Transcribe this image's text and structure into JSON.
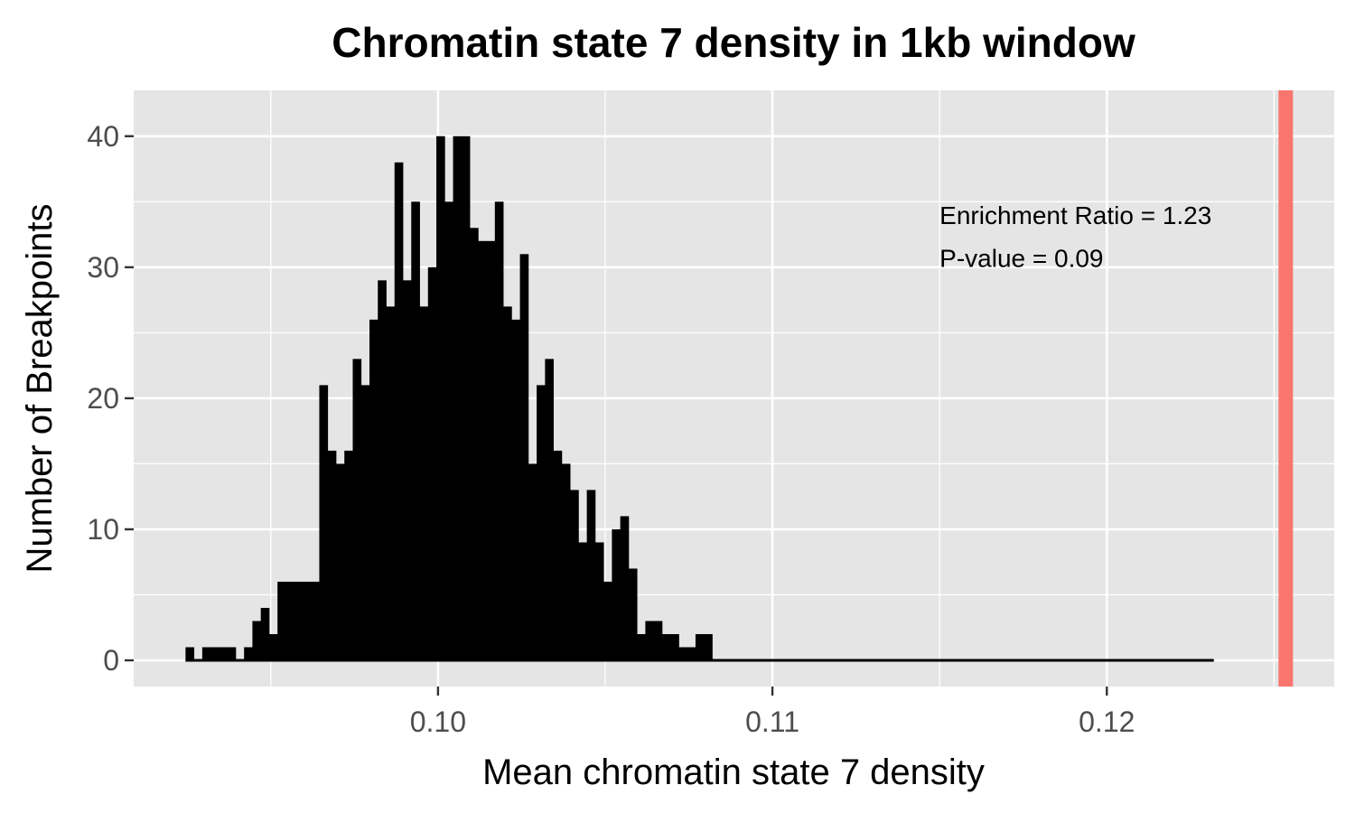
{
  "chart_data": {
    "type": "bar",
    "title": "Chromatin state 7 density in 1kb window",
    "xlabel": "Mean chromatin state 7 density",
    "ylabel": "Number of Breakpoints",
    "xlim": [
      0.0909,
      0.1268
    ],
    "ylim": [
      -2.0,
      43.5
    ],
    "x_ticks": [
      0.1,
      0.11,
      0.12
    ],
    "x_tick_labels": [
      "0.10",
      "0.11",
      "0.12"
    ],
    "y_ticks": [
      0,
      10,
      20,
      30,
      40
    ],
    "y_tick_labels": [
      "0",
      "10",
      "20",
      "30",
      "40"
    ],
    "grid": true,
    "background": "#e5e5e5",
    "bar_color": "#000000",
    "bins": {
      "start": 0.09245,
      "width": 0.00025,
      "counts": [
        1,
        0,
        1,
        1,
        1,
        1,
        0,
        1,
        3,
        4,
        2,
        6,
        6,
        6,
        6,
        6,
        21,
        16,
        15,
        16,
        23,
        21,
        26,
        29,
        27,
        38,
        29,
        35,
        27,
        30,
        40,
        35,
        40,
        40,
        33,
        32,
        32,
        35,
        27,
        26,
        31,
        15,
        21,
        23,
        16,
        15,
        13,
        9,
        13,
        9,
        6,
        10,
        11,
        7,
        2,
        3,
        3,
        2,
        2,
        1,
        1,
        2,
        2,
        0,
        0,
        0,
        0,
        0,
        0,
        0,
        0,
        0,
        0,
        0,
        0,
        0,
        0,
        0,
        0,
        0,
        0,
        0,
        0,
        0,
        0,
        0,
        0,
        0,
        0,
        0,
        0,
        0,
        0,
        0,
        0,
        0,
        0,
        0,
        0,
        0,
        0,
        0,
        0,
        0,
        0,
        0,
        0,
        0,
        0,
        0,
        0,
        0,
        0,
        0,
        0,
        0,
        0,
        0,
        0,
        0,
        0,
        0,
        0
      ]
    },
    "observed_line": {
      "x": 0.12535,
      "color": "#f8766d"
    },
    "annotations": [
      {
        "text": "Enrichment Ratio = 1.23",
        "x": 0.115,
        "y": 34
      },
      {
        "text": "P-value = 0.09",
        "x": 0.115,
        "y": 30.7
      }
    ]
  }
}
